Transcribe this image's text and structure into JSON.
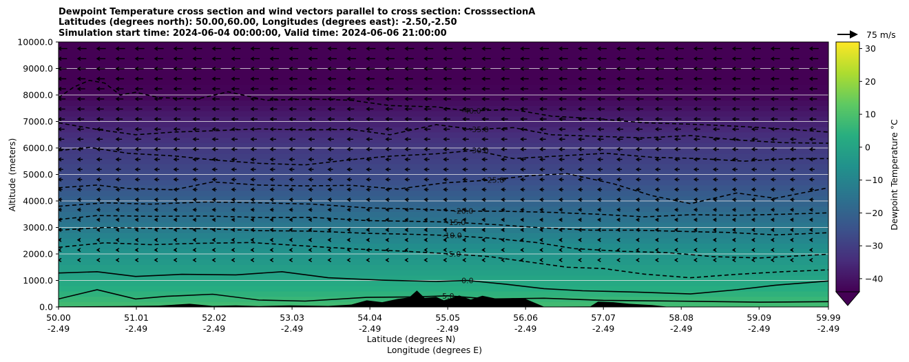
{
  "chart_data": {
    "type": "heatmap",
    "title_lines": [
      "Dewpoint Temperature cross section and wind vectors parallel to cross section: CrosssectionA",
      "Latitudes (degrees north): 50.00,60.00, Longitudes (degrees east): -2.50,-2.50",
      "Simulation start time: 2024-06-04 00:00:00, Valid time: 2024-06-06 21:00:00"
    ],
    "xlabel": "Latitude (degrees N)",
    "xlabel2": "Longitude (degrees E)",
    "ylabel": "Altitude (meters)",
    "x_ticks": [
      {
        "lat": 50.0,
        "lat_label": "50.00",
        "lon_label": "-2.49"
      },
      {
        "lat": 51.01,
        "lat_label": "51.01",
        "lon_label": "-2.49"
      },
      {
        "lat": 52.02,
        "lat_label": "52.02",
        "lon_label": "-2.49"
      },
      {
        "lat": 53.03,
        "lat_label": "53.03",
        "lon_label": "-2.49"
      },
      {
        "lat": 54.04,
        "lat_label": "54.04",
        "lon_label": "-2.49"
      },
      {
        "lat": 55.05,
        "lat_label": "55.05",
        "lon_label": "-2.49"
      },
      {
        "lat": 56.06,
        "lat_label": "56.06",
        "lon_label": "-2.49"
      },
      {
        "lat": 57.07,
        "lat_label": "57.07",
        "lon_label": "-2.49"
      },
      {
        "lat": 58.08,
        "lat_label": "58.08",
        "lon_label": "-2.49"
      },
      {
        "lat": 59.09,
        "lat_label": "59.09",
        "lon_label": "-2.49"
      },
      {
        "lat": 59.99,
        "lat_label": "59.99",
        "lon_label": "-2.49"
      }
    ],
    "xlim": [
      50.0,
      59.99
    ],
    "ylim": [
      0,
      10000
    ],
    "y_ticks": [
      {
        "value": 0,
        "label": "0.0"
      },
      {
        "value": 1000,
        "label": "1000.0"
      },
      {
        "value": 2000,
        "label": "2000.0"
      },
      {
        "value": 3000,
        "label": "3000.0"
      },
      {
        "value": 4000,
        "label": "4000.0"
      },
      {
        "value": 5000,
        "label": "5000.0"
      },
      {
        "value": 6000,
        "label": "6000.0"
      },
      {
        "value": 7000,
        "label": "7000.0"
      },
      {
        "value": 8000,
        "label": "8000.0"
      },
      {
        "value": 9000,
        "label": "9000.0"
      },
      {
        "value": 10000,
        "label": "10000.0"
      }
    ],
    "grid": "horizontal",
    "colorbar": {
      "label": "Dewpoint Temperature °C",
      "range": [
        -44,
        32
      ],
      "extend": "min",
      "colormap": "viridis",
      "ticks": [
        {
          "value": -40,
          "label": "−40"
        },
        {
          "value": -30,
          "label": "−30"
        },
        {
          "value": -20,
          "label": "−20"
        },
        {
          "value": -10,
          "label": "−10"
        },
        {
          "value": 0,
          "label": "0"
        },
        {
          "value": 10,
          "label": "10"
        },
        {
          "value": 20,
          "label": "20"
        },
        {
          "value": 30,
          "label": "30"
        }
      ]
    },
    "wind_key": {
      "label": "75 m/s",
      "direction": "east"
    },
    "wind_direction": "toward lower latitude (west-pointing arrows, strongest aloft)",
    "contours": [
      {
        "level": 5,
        "label": "5.0",
        "style": "solid",
        "profile": [
          [
            50.0,
            300
          ],
          [
            50.5,
            650
          ],
          [
            51.0,
            300
          ],
          [
            51.4,
            400
          ],
          [
            52.0,
            480
          ],
          [
            52.6,
            260
          ],
          [
            53.2,
            220
          ],
          [
            54.0,
            360
          ],
          [
            54.6,
            380
          ],
          [
            55.05,
            420
          ],
          [
            55.6,
            300
          ],
          [
            56.3,
            330
          ],
          [
            57.07,
            250
          ],
          [
            58.0,
            220
          ],
          [
            59.09,
            180
          ],
          [
            59.99,
            200
          ]
        ]
      },
      {
        "level": 0,
        "label": "0.0",
        "style": "solid",
        "profile": [
          [
            50.0,
            1280
          ],
          [
            50.5,
            1330
          ],
          [
            51.0,
            1150
          ],
          [
            51.6,
            1230
          ],
          [
            52.3,
            1210
          ],
          [
            52.9,
            1330
          ],
          [
            53.5,
            1100
          ],
          [
            54.2,
            1010
          ],
          [
            54.9,
            960
          ],
          [
            55.3,
            1000
          ],
          [
            55.8,
            860
          ],
          [
            56.3,
            690
          ],
          [
            56.8,
            610
          ],
          [
            57.5,
            560
          ],
          [
            58.2,
            490
          ],
          [
            58.8,
            650
          ],
          [
            59.3,
            820
          ],
          [
            59.99,
            980
          ]
        ]
      },
      {
        "level": -5,
        "label": "-5.0",
        "style": "dashed",
        "profile": [
          [
            50.0,
            2250
          ],
          [
            50.6,
            2420
          ],
          [
            51.2,
            2350
          ],
          [
            51.8,
            2400
          ],
          [
            52.5,
            2430
          ],
          [
            53.2,
            2300
          ],
          [
            53.9,
            2180
          ],
          [
            54.5,
            2100
          ],
          [
            55.1,
            2000
          ],
          [
            55.6,
            1900
          ],
          [
            56.1,
            1700
          ],
          [
            56.6,
            1500
          ],
          [
            57.07,
            1450
          ],
          [
            57.6,
            1240
          ],
          [
            58.2,
            1100
          ],
          [
            58.8,
            1230
          ],
          [
            59.4,
            1330
          ],
          [
            59.99,
            1400
          ]
        ]
      },
      {
        "level": -10,
        "label": "-10.0",
        "style": "dashed",
        "profile": [
          [
            50.0,
            2900
          ],
          [
            50.6,
            3000
          ],
          [
            51.2,
            2960
          ],
          [
            51.9,
            2950
          ],
          [
            52.6,
            2880
          ],
          [
            53.3,
            2860
          ],
          [
            54.0,
            2780
          ],
          [
            54.6,
            2740
          ],
          [
            55.05,
            2700
          ],
          [
            55.6,
            2600
          ],
          [
            56.2,
            2430
          ],
          [
            56.7,
            2200
          ],
          [
            57.3,
            2100
          ],
          [
            57.9,
            2050
          ],
          [
            58.5,
            1900
          ],
          [
            59.1,
            1850
          ],
          [
            59.99,
            1990
          ]
        ]
      },
      {
        "level": -15,
        "label": "-15.0",
        "style": "dashed",
        "profile": [
          [
            50.0,
            3300
          ],
          [
            50.5,
            3450
          ],
          [
            51.2,
            3420
          ],
          [
            51.9,
            3430
          ],
          [
            52.6,
            3380
          ],
          [
            53.3,
            3380
          ],
          [
            54.0,
            3260
          ],
          [
            54.6,
            3230
          ],
          [
            55.1,
            3200
          ],
          [
            55.7,
            3100
          ],
          [
            56.3,
            2980
          ],
          [
            56.9,
            2900
          ],
          [
            57.5,
            2900
          ],
          [
            58.1,
            2850
          ],
          [
            58.7,
            2810
          ],
          [
            59.3,
            2720
          ],
          [
            59.99,
            2800
          ]
        ]
      },
      {
        "level": -20,
        "label": "-20.0",
        "style": "dashed",
        "profile": [
          [
            50.0,
            3800
          ],
          [
            50.6,
            3930
          ],
          [
            51.2,
            3880
          ],
          [
            51.9,
            3960
          ],
          [
            52.6,
            3930
          ],
          [
            53.3,
            3880
          ],
          [
            54.0,
            3740
          ],
          [
            54.6,
            3700
          ],
          [
            55.2,
            3620
          ],
          [
            55.8,
            3610
          ],
          [
            56.4,
            3570
          ],
          [
            57.0,
            3500
          ],
          [
            57.6,
            3400
          ],
          [
            58.2,
            3480
          ],
          [
            58.8,
            3460
          ],
          [
            59.4,
            3500
          ],
          [
            59.99,
            3550
          ]
        ]
      },
      {
        "level": -25,
        "label": "-25.0",
        "style": "dashed",
        "profile": [
          [
            50.0,
            4500
          ],
          [
            50.5,
            4600
          ],
          [
            50.9,
            4470
          ],
          [
            51.5,
            4420
          ],
          [
            52.0,
            4720
          ],
          [
            52.6,
            4600
          ],
          [
            53.2,
            4570
          ],
          [
            53.8,
            4590
          ],
          [
            54.4,
            4450
          ],
          [
            55.0,
            4680
          ],
          [
            55.6,
            4790
          ],
          [
            56.1,
            4950
          ],
          [
            56.6,
            5030
          ],
          [
            57.2,
            4650
          ],
          [
            57.7,
            4200
          ],
          [
            58.2,
            3900
          ],
          [
            58.8,
            4300
          ],
          [
            59.3,
            4100
          ],
          [
            59.99,
            4500
          ]
        ]
      },
      {
        "level": -30,
        "label": "-30.0",
        "style": "dashed",
        "profile": [
          [
            50.0,
            5900
          ],
          [
            50.4,
            6020
          ],
          [
            50.9,
            5800
          ],
          [
            51.5,
            5700
          ],
          [
            52.0,
            5550
          ],
          [
            52.6,
            5420
          ],
          [
            53.2,
            5360
          ],
          [
            53.8,
            5560
          ],
          [
            54.3,
            5690
          ],
          [
            54.9,
            5780
          ],
          [
            55.4,
            5910
          ],
          [
            55.9,
            5600
          ],
          [
            56.5,
            5700
          ],
          [
            57.1,
            5800
          ],
          [
            57.7,
            5650
          ],
          [
            58.3,
            5600
          ],
          [
            58.9,
            5500
          ],
          [
            59.5,
            5600
          ],
          [
            59.99,
            5600
          ]
        ]
      },
      {
        "level": -35,
        "label": "-35.0",
        "style": "dashed",
        "profile": [
          [
            50.0,
            6950
          ],
          [
            50.5,
            6700
          ],
          [
            51.0,
            6500
          ],
          [
            51.5,
            6600
          ],
          [
            52.0,
            6650
          ],
          [
            52.6,
            6720
          ],
          [
            53.2,
            6680
          ],
          [
            53.8,
            6700
          ],
          [
            54.3,
            6500
          ],
          [
            54.9,
            6880
          ],
          [
            55.4,
            6700
          ],
          [
            55.9,
            6770
          ],
          [
            56.4,
            6500
          ],
          [
            57.0,
            6440
          ],
          [
            57.6,
            6380
          ],
          [
            58.2,
            6470
          ],
          [
            58.8,
            6300
          ],
          [
            59.4,
            6200
          ],
          [
            59.99,
            6180
          ]
        ]
      },
      {
        "level": -40,
        "label": "-40.0",
        "style": "dashed",
        "profile": [
          [
            50.0,
            7900
          ],
          [
            50.2,
            8300
          ],
          [
            50.4,
            8550
          ],
          [
            50.6,
            8450
          ],
          [
            50.8,
            8000
          ],
          [
            51.0,
            8100
          ],
          [
            51.3,
            7900
          ],
          [
            51.8,
            7850
          ],
          [
            52.2,
            8120
          ],
          [
            52.7,
            7800
          ],
          [
            53.3,
            7850
          ],
          [
            53.8,
            7800
          ],
          [
            54.3,
            7600
          ],
          [
            54.9,
            7550
          ],
          [
            55.3,
            7400
          ],
          [
            55.9,
            7450
          ],
          [
            56.4,
            7200
          ],
          [
            57.0,
            7100
          ],
          [
            57.6,
            6950
          ],
          [
            58.2,
            6900
          ],
          [
            58.8,
            6820
          ],
          [
            59.5,
            6700
          ],
          [
            59.99,
            6600
          ]
        ]
      }
    ],
    "field_profile": [
      {
        "altitude": 0,
        "dewpoint": 9
      },
      {
        "altitude": 500,
        "dewpoint": 5
      },
      {
        "altitude": 1200,
        "dewpoint": 0
      },
      {
        "altitude": 2200,
        "dewpoint": -6
      },
      {
        "altitude": 3000,
        "dewpoint": -13
      },
      {
        "altitude": 4000,
        "dewpoint": -20
      },
      {
        "altitude": 5000,
        "dewpoint": -27
      },
      {
        "altitude": 6000,
        "dewpoint": -31
      },
      {
        "altitude": 7000,
        "dewpoint": -37
      },
      {
        "altitude": 8000,
        "dewpoint": -43
      },
      {
        "altitude": 10000,
        "dewpoint": -47
      }
    ],
    "terrain": [
      [
        50.0,
        20
      ],
      [
        50.8,
        30
      ],
      [
        51.3,
        50
      ],
      [
        51.7,
        120
      ],
      [
        52.0,
        40
      ],
      [
        52.3,
        60
      ],
      [
        52.6,
        30
      ],
      [
        53.0,
        60
      ],
      [
        53.5,
        40
      ],
      [
        53.8,
        90
      ],
      [
        54.0,
        250
      ],
      [
        54.2,
        180
      ],
      [
        54.4,
        300
      ],
      [
        54.55,
        360
      ],
      [
        54.65,
        620
      ],
      [
        54.75,
        340
      ],
      [
        54.9,
        380
      ],
      [
        55.0,
        250
      ],
      [
        55.2,
        430
      ],
      [
        55.35,
        280
      ],
      [
        55.5,
        420
      ],
      [
        55.7,
        300
      ],
      [
        55.9,
        330
      ],
      [
        56.06,
        300
      ],
      [
        56.3,
        10
      ],
      [
        56.9,
        20
      ],
      [
        57.0,
        200
      ],
      [
        57.2,
        180
      ],
      [
        57.4,
        120
      ],
      [
        57.7,
        70
      ],
      [
        57.9,
        10
      ],
      [
        59.99,
        5
      ]
    ]
  }
}
